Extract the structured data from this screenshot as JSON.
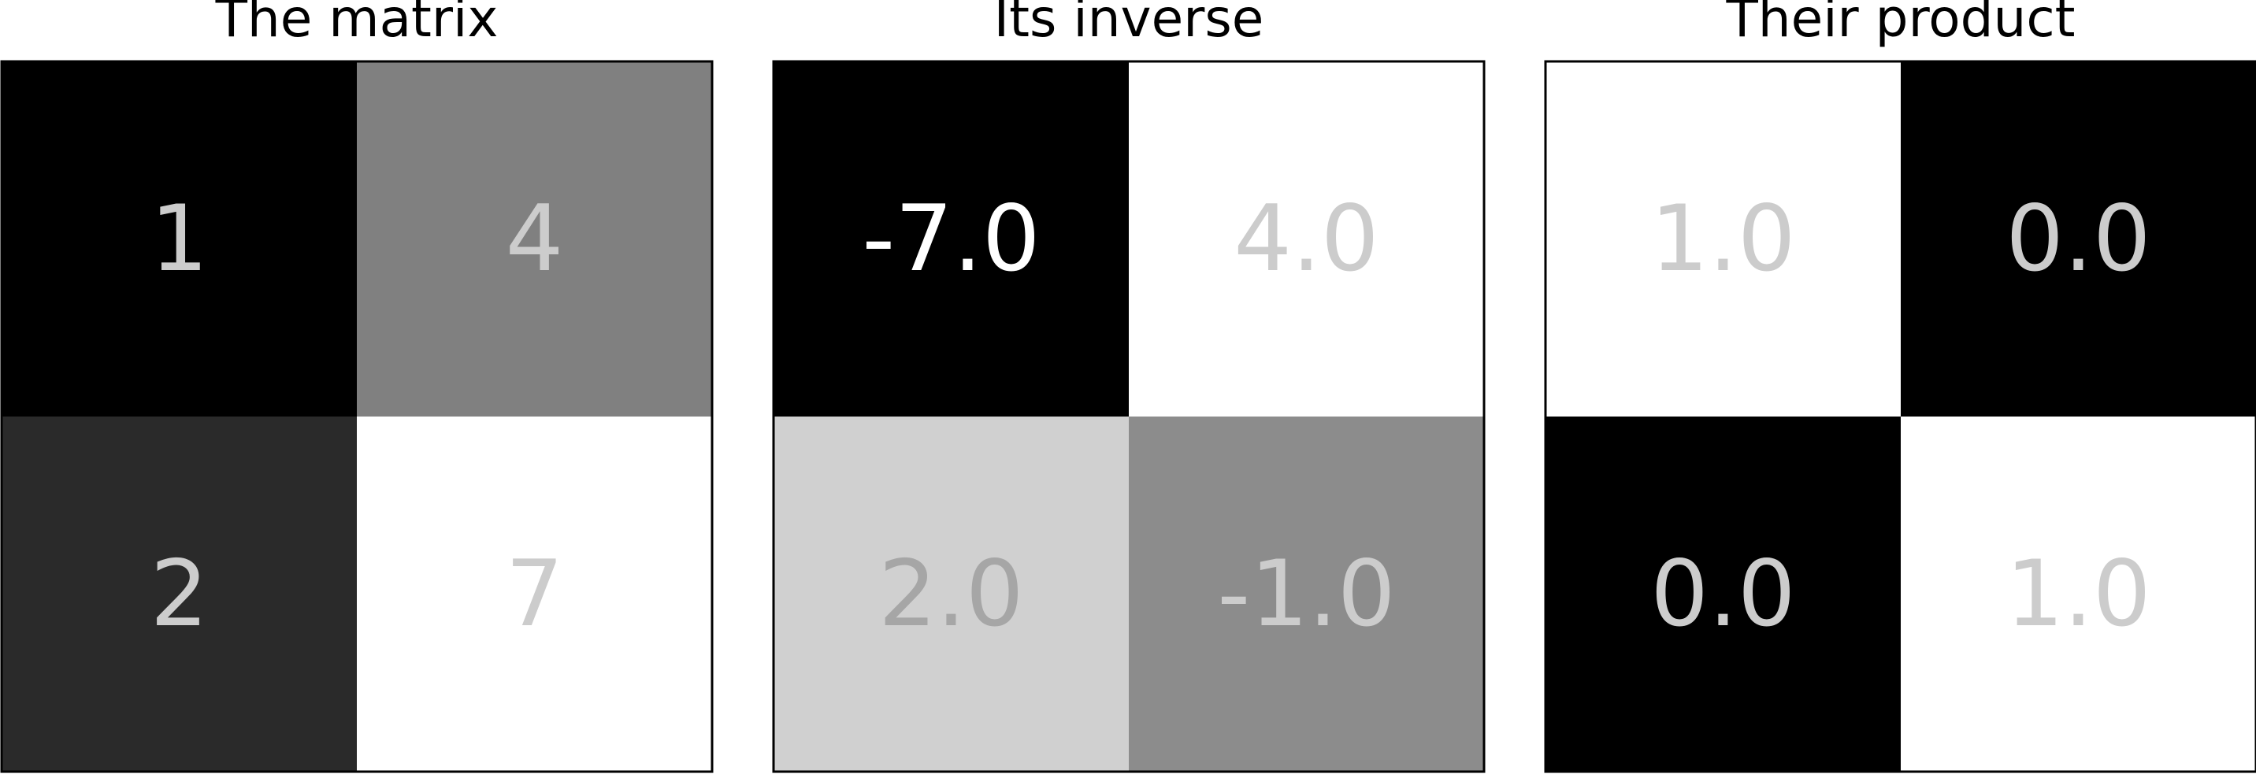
{
  "chart_data": [
    {
      "type": "heatmap",
      "title": "The matrix",
      "rows": 2,
      "cols": 2,
      "values": [
        [
          1,
          4
        ],
        [
          2,
          7
        ]
      ],
      "labels": [
        [
          "1",
          "4"
        ],
        [
          "2",
          "7"
        ]
      ],
      "cell_colors": [
        [
          "#000000",
          "#808080"
        ],
        [
          "#2a2a2a",
          "#ffffff"
        ]
      ],
      "label_colors": [
        [
          "#cccccc",
          "#cccccc"
        ],
        [
          "#cccccc",
          "#cccccc"
        ]
      ]
    },
    {
      "type": "heatmap",
      "title": "Its inverse",
      "rows": 2,
      "cols": 2,
      "values": [
        [
          -7.0,
          4.0
        ],
        [
          2.0,
          -1.0
        ]
      ],
      "labels": [
        [
          "-7.0",
          "4.0"
        ],
        [
          "2.0",
          "-1.0"
        ]
      ],
      "cell_colors": [
        [
          "#000000",
          "#ffffff"
        ],
        [
          "#d0d0d0",
          "#8c8c8c"
        ]
      ],
      "label_colors": [
        [
          "#ffffff",
          "#cccccc"
        ],
        [
          "#a6a6a6",
          "#cccccc"
        ]
      ]
    },
    {
      "type": "heatmap",
      "title": "Their product",
      "rows": 2,
      "cols": 2,
      "values": [
        [
          1.0,
          0.0
        ],
        [
          0.0,
          1.0
        ]
      ],
      "labels": [
        [
          "1.0",
          "0.0"
        ],
        [
          "0.0",
          "1.0"
        ]
      ],
      "cell_colors": [
        [
          "#ffffff",
          "#000000"
        ],
        [
          "#000000",
          "#ffffff"
        ]
      ],
      "label_colors": [
        [
          "#cccccc",
          "#cccccc"
        ],
        [
          "#cccccc",
          "#cccccc"
        ]
      ]
    }
  ]
}
